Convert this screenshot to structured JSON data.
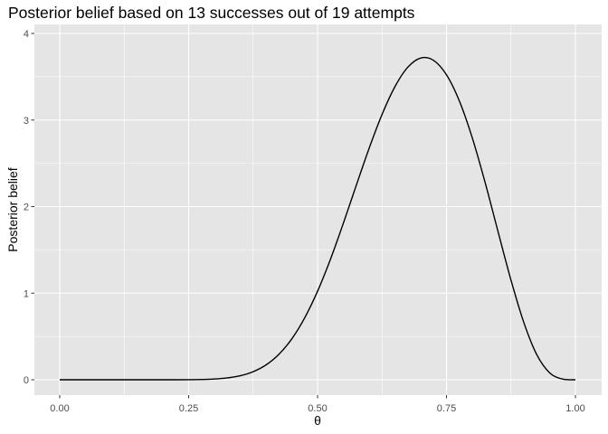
{
  "chart_data": {
    "type": "line",
    "title": "Posterior belief based on 13 successes out of 19 attempts",
    "xlabel": "θ",
    "ylabel": "Posterior belief",
    "xlim": [
      0,
      1
    ],
    "ylim": [
      0,
      4
    ],
    "x_ticks": [
      0,
      0.25,
      0.5,
      0.75,
      1
    ],
    "x_tick_labels": [
      "0.00",
      "0.25",
      "0.50",
      "0.75",
      "1.00"
    ],
    "y_ticks": [
      0,
      1,
      2,
      3,
      4
    ],
    "y_tick_labels": [
      "0",
      "1",
      "2",
      "3",
      "4"
    ],
    "grid": true,
    "legend": "none",
    "colors": {
      "panel_background": "#e5e5e5",
      "grid_major": "#ffffff",
      "line": "#000000",
      "tick_text": "#4d4d4d"
    },
    "series": [
      {
        "x": [
          0,
          0.025,
          0.05,
          0.075,
          0.1,
          0.125,
          0.15,
          0.175,
          0.2,
          0.225,
          0.25,
          0.275,
          0.3,
          0.325,
          0.35,
          0.375,
          0.4,
          0.425,
          0.45,
          0.475,
          0.5,
          0.525,
          0.55,
          0.575,
          0.6,
          0.625,
          0.65,
          0.675,
          0.7,
          0.725,
          0.75,
          0.775,
          0.8,
          0.825,
          0.85,
          0.875,
          0.9,
          0.925,
          0.95,
          0.975,
          1
        ],
        "values": [
          0,
          0,
          0,
          0,
          0,
          0,
          0,
          0,
          0,
          0,
          0.001,
          0.003,
          0.008,
          0.021,
          0.046,
          0.093,
          0.171,
          0.294,
          0.472,
          0.715,
          1.023,
          1.392,
          1.808,
          2.245,
          2.674,
          3.064,
          3.385,
          3.61,
          3.716,
          3.689,
          3.522,
          3.219,
          2.794,
          2.276,
          1.71,
          1.152,
          0.66,
          0.29,
          0.08,
          0.008,
          0
        ]
      }
    ]
  }
}
